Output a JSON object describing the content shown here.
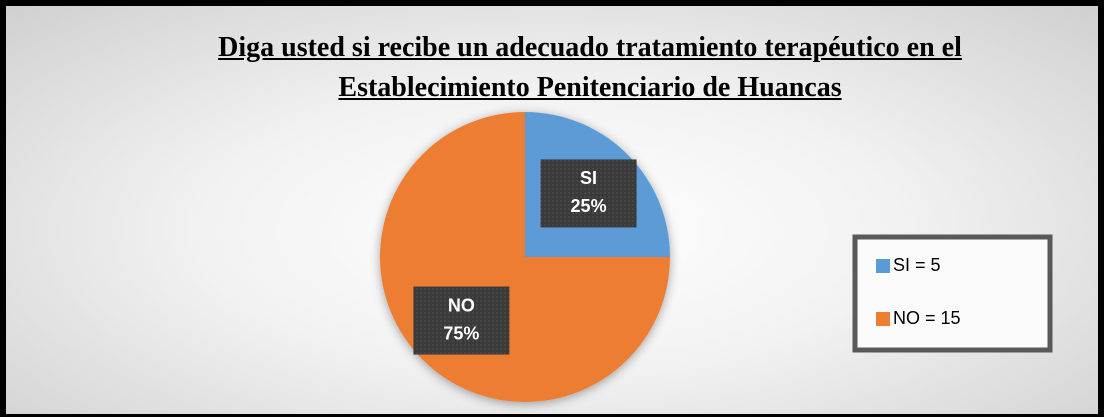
{
  "chart_data": {
    "type": "pie",
    "title": "Diga usted si recibe un adecuado tratamiento terapéutico en el Establecimiento Penitenciario de Huancas",
    "categories": [
      "SI",
      "NO"
    ],
    "values": [
      25,
      75
    ],
    "value_labels": [
      "25%",
      "75%"
    ],
    "colors": [
      "#5b9bd5",
      "#ed7d31"
    ],
    "legend_labels": [
      "SI = 5",
      "NO = 15"
    ],
    "legend": "right"
  }
}
